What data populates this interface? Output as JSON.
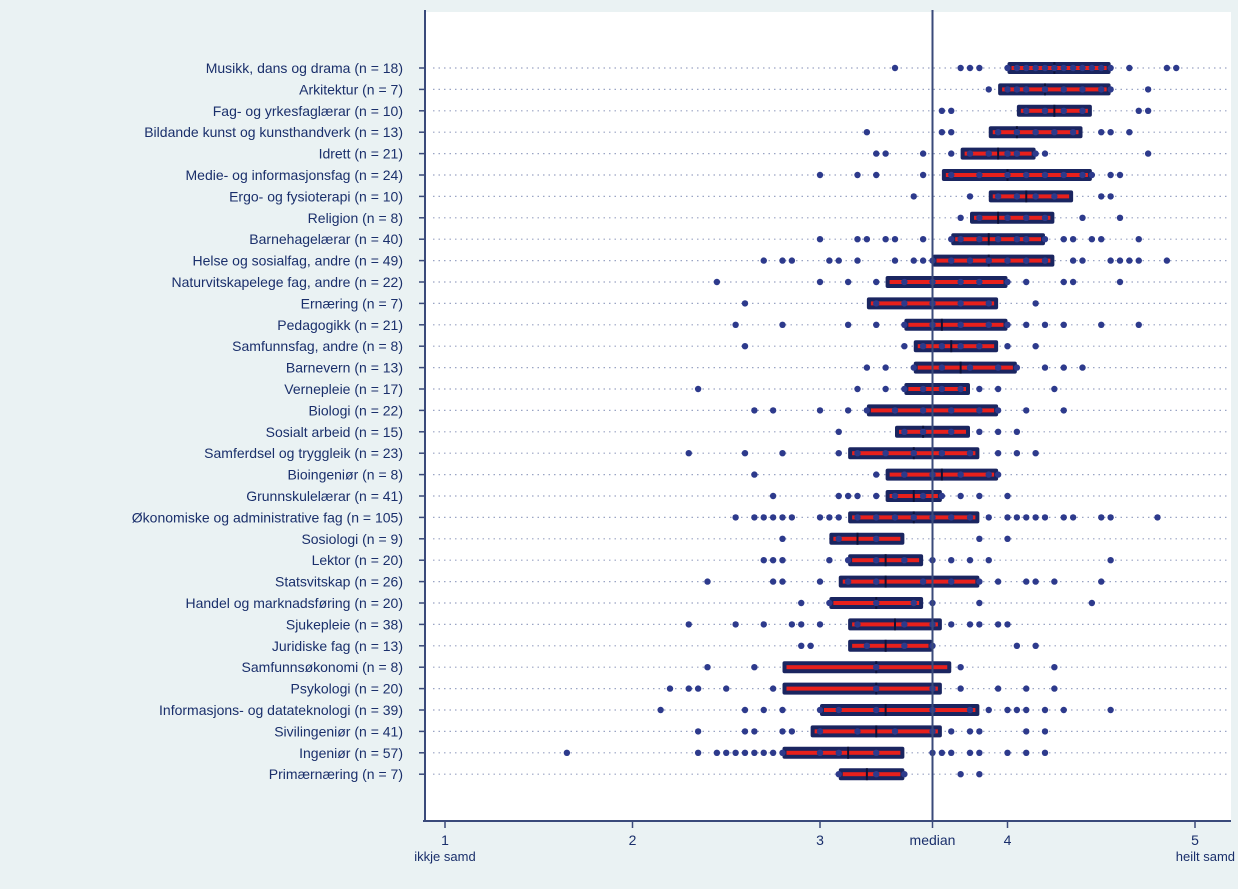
{
  "chart_data": {
    "type": "boxplot",
    "title": "",
    "xlim": [
      0.9,
      5.25
    ],
    "xticks": [
      "1",
      "2",
      "3",
      "4",
      "5"
    ],
    "x_tick_values": [
      1,
      2,
      3,
      4,
      5
    ],
    "x_end_labels": {
      "low": "ikkje samd",
      "high": "heilt samd"
    },
    "median_line": {
      "value": 3.6,
      "label": "median"
    },
    "grid": "dotted horizontal per category",
    "colors": {
      "box": "#1a2560",
      "median_band": "#e8201c",
      "points": "#2d3a8c",
      "axis": "#3a4a7a",
      "plot_bg": "#ffffff",
      "page_bg": "#eaf2f3",
      "text": "#1a2f6b"
    },
    "categories": [
      "Musikk, dans og drama (n = 18)",
      "Arkitektur (n = 7)",
      "Fag- og yrkesfaglærar (n = 10)",
      "Bildande kunst og kunsthandverk (n = 13)",
      "Idrett (n = 21)",
      "Medie- og informasjonsfag (n = 24)",
      "Ergo- og fysioterapi (n = 10)",
      "Religion (n = 8)",
      "Barnehagelærar (n = 40)",
      "Helse og sosialfag, andre (n = 49)",
      "Naturvitskapelege fag, andre (n = 22)",
      "Ernæring (n = 7)",
      "Pedagogikk (n = 21)",
      "Samfunnsfag, andre (n = 8)",
      "Barnevern (n = 13)",
      "Vernepleie (n = 17)",
      "Biologi (n = 22)",
      "Sosialt arbeid (n = 15)",
      "Samferdsel og tryggleik (n = 23)",
      "Bioingeniør (n = 8)",
      "Grunnskulelærar (n = 41)",
      "Økonomiske og administrative fag (n = 105)",
      "Sosiologi (n = 9)",
      "Lektor (n = 20)",
      "Statsvitskap (n = 26)",
      "Handel og marknadsføring (n = 20)",
      "Sjukepleie (n = 38)",
      "Juridiske fag (n = 13)",
      "Samfunnsøkonomi (n = 8)",
      "Psykologi (n = 20)",
      "Informasjons- og datateknologi (n = 39)",
      "Sivilingeniør (n = 41)",
      "Ingeniør (n = 57)",
      "Primærnæring (n = 7)"
    ],
    "boxes": [
      {
        "q1": 4.0,
        "median": 4.25,
        "q3": 4.55
      },
      {
        "q1": 3.95,
        "median": 4.2,
        "q3": 4.55
      },
      {
        "q1": 4.05,
        "median": 4.25,
        "q3": 4.45
      },
      {
        "q1": 3.9,
        "median": 4.05,
        "q3": 4.4
      },
      {
        "q1": 3.75,
        "median": 3.95,
        "q3": 4.15
      },
      {
        "q1": 3.65,
        "median": 4.0,
        "q3": 4.45
      },
      {
        "q1": 3.9,
        "median": 4.1,
        "q3": 4.35
      },
      {
        "q1": 3.8,
        "median": 3.95,
        "q3": 4.25
      },
      {
        "q1": 3.7,
        "median": 3.9,
        "q3": 4.2
      },
      {
        "q1": 3.6,
        "median": 3.9,
        "q3": 4.25
      },
      {
        "q1": 3.35,
        "median": 3.6,
        "q3": 4.0
      },
      {
        "q1": 3.25,
        "median": 3.6,
        "q3": 3.95
      },
      {
        "q1": 3.45,
        "median": 3.65,
        "q3": 4.0
      },
      {
        "q1": 3.5,
        "median": 3.7,
        "q3": 3.95
      },
      {
        "q1": 3.5,
        "median": 3.75,
        "q3": 4.05
      },
      {
        "q1": 3.45,
        "median": 3.6,
        "q3": 3.8
      },
      {
        "q1": 3.25,
        "median": 3.6,
        "q3": 3.95
      },
      {
        "q1": 3.4,
        "median": 3.55,
        "q3": 3.8
      },
      {
        "q1": 3.15,
        "median": 3.5,
        "q3": 3.85
      },
      {
        "q1": 3.35,
        "median": 3.65,
        "q3": 3.95
      },
      {
        "q1": 3.35,
        "median": 3.5,
        "q3": 3.65
      },
      {
        "q1": 3.15,
        "median": 3.5,
        "q3": 3.85
      },
      {
        "q1": 3.05,
        "median": 3.2,
        "q3": 3.45
      },
      {
        "q1": 3.15,
        "median": 3.35,
        "q3": 3.55
      },
      {
        "q1": 3.1,
        "median": 3.35,
        "q3": 3.85
      },
      {
        "q1": 3.05,
        "median": 3.3,
        "q3": 3.55
      },
      {
        "q1": 3.15,
        "median": 3.4,
        "q3": 3.65
      },
      {
        "q1": 3.15,
        "median": 3.35,
        "q3": 3.6
      },
      {
        "q1": 2.8,
        "median": 3.3,
        "q3": 3.7
      },
      {
        "q1": 2.8,
        "median": 3.3,
        "q3": 3.65
      },
      {
        "q1": 3.0,
        "median": 3.35,
        "q3": 3.85
      },
      {
        "q1": 2.95,
        "median": 3.3,
        "q3": 3.65
      },
      {
        "q1": 2.8,
        "median": 3.15,
        "q3": 3.45
      },
      {
        "q1": 3.1,
        "median": 3.25,
        "q3": 3.45
      }
    ],
    "points": [
      [
        3.4,
        3.75,
        3.8,
        3.85,
        4.0,
        4.05,
        4.1,
        4.15,
        4.2,
        4.25,
        4.3,
        4.35,
        4.4,
        4.45,
        4.5,
        4.55,
        4.65,
        4.85,
        4.9
      ],
      [
        3.9,
        4.0,
        4.05,
        4.1,
        4.2,
        4.3,
        4.4,
        4.5,
        4.55,
        4.75
      ],
      [
        3.65,
        3.7,
        4.1,
        4.2,
        4.3,
        4.4,
        4.7,
        4.75
      ],
      [
        3.25,
        3.65,
        3.7,
        3.95,
        4.05,
        4.15,
        4.25,
        4.35,
        4.5,
        4.55,
        4.65
      ],
      [
        3.3,
        3.35,
        3.55,
        3.7,
        3.8,
        3.9,
        4.0,
        4.05,
        4.15,
        4.2,
        4.75
      ],
      [
        3.0,
        3.2,
        3.3,
        3.55,
        3.7,
        3.85,
        4.0,
        4.1,
        4.2,
        4.3,
        4.4,
        4.45,
        4.55,
        4.6
      ],
      [
        3.5,
        3.8,
        3.95,
        4.05,
        4.15,
        4.25,
        4.5,
        4.55
      ],
      [
        3.75,
        3.85,
        4.0,
        4.1,
        4.2,
        4.4,
        4.6
      ],
      [
        3.0,
        3.2,
        3.25,
        3.35,
        3.4,
        3.55,
        3.7,
        3.75,
        3.85,
        3.95,
        4.05,
        4.1,
        4.2,
        4.3,
        4.35,
        4.45,
        4.5,
        4.7
      ],
      [
        2.7,
        2.8,
        2.85,
        3.05,
        3.1,
        3.2,
        3.4,
        3.5,
        3.55,
        3.6,
        3.7,
        3.8,
        3.9,
        4.0,
        4.1,
        4.2,
        4.35,
        4.4,
        4.55,
        4.6,
        4.65,
        4.7,
        4.85
      ],
      [
        2.45,
        3.0,
        3.15,
        3.3,
        3.45,
        3.6,
        3.75,
        3.85,
        4.0,
        4.1,
        4.3,
        4.35,
        4.6
      ],
      [
        2.6,
        3.3,
        3.45,
        3.6,
        3.75,
        3.9,
        4.15
      ],
      [
        2.55,
        2.8,
        3.15,
        3.3,
        3.45,
        3.6,
        3.75,
        3.9,
        4.0,
        4.1,
        4.2,
        4.3,
        4.5,
        4.7
      ],
      [
        2.6,
        3.45,
        3.55,
        3.65,
        3.75,
        3.85,
        4.0,
        4.15
      ],
      [
        3.25,
        3.35,
        3.5,
        3.65,
        3.8,
        3.95,
        4.05,
        4.2,
        4.3,
        4.4
      ],
      [
        2.35,
        3.2,
        3.35,
        3.45,
        3.55,
        3.65,
        3.75,
        3.85,
        3.95,
        4.25
      ],
      [
        2.65,
        2.75,
        3.0,
        3.15,
        3.25,
        3.4,
        3.55,
        3.7,
        3.85,
        3.95,
        4.1,
        4.3
      ],
      [
        3.1,
        3.45,
        3.55,
        3.7,
        3.85,
        3.95,
        4.05
      ],
      [
        2.3,
        2.6,
        2.8,
        3.1,
        3.2,
        3.35,
        3.5,
        3.65,
        3.8,
        3.95,
        4.05,
        4.15
      ],
      [
        2.65,
        3.3,
        3.45,
        3.6,
        3.75,
        3.9,
        3.95
      ],
      [
        2.75,
        3.1,
        3.15,
        3.2,
        3.3,
        3.4,
        3.55,
        3.65,
        3.75,
        3.85,
        4.0
      ],
      [
        2.55,
        2.65,
        2.7,
        2.75,
        2.8,
        2.85,
        3.0,
        3.05,
        3.1,
        3.2,
        3.3,
        3.4,
        3.5,
        3.6,
        3.7,
        3.8,
        3.9,
        4.0,
        4.05,
        4.1,
        4.15,
        4.2,
        4.3,
        4.35,
        4.5,
        4.55,
        4.8
      ],
      [
        2.8,
        3.1,
        3.3,
        3.85,
        4.0
      ],
      [
        2.7,
        2.75,
        2.8,
        3.05,
        3.15,
        3.3,
        3.45,
        3.6,
        3.7,
        3.8,
        3.9,
        4.55
      ],
      [
        2.4,
        2.75,
        2.8,
        3.0,
        3.15,
        3.3,
        3.55,
        3.7,
        3.85,
        3.95,
        4.1,
        4.15,
        4.25,
        4.5
      ],
      [
        2.9,
        3.05,
        3.3,
        3.5,
        3.6,
        3.85,
        4.45
      ],
      [
        2.3,
        2.55,
        2.7,
        2.85,
        2.9,
        3.0,
        3.2,
        3.45,
        3.6,
        3.7,
        3.8,
        3.85,
        3.95,
        4.0
      ],
      [
        2.9,
        2.95,
        3.25,
        3.45,
        3.6,
        4.05,
        4.15
      ],
      [
        2.4,
        2.65,
        3.3,
        3.75,
        4.25
      ],
      [
        2.2,
        2.3,
        2.35,
        2.5,
        2.75,
        3.3,
        3.6,
        3.75,
        3.95,
        4.1,
        4.25
      ],
      [
        2.15,
        2.6,
        2.7,
        2.8,
        3.0,
        3.1,
        3.3,
        3.6,
        3.8,
        3.9,
        4.0,
        4.05,
        4.1,
        4.2,
        4.3,
        4.55
      ],
      [
        2.35,
        2.6,
        2.65,
        2.8,
        2.85,
        3.0,
        3.2,
        3.4,
        3.6,
        3.7,
        3.8,
        3.85,
        4.1,
        4.2
      ],
      [
        1.65,
        2.35,
        2.45,
        2.5,
        2.55,
        2.6,
        2.65,
        2.7,
        2.75,
        2.8,
        3.0,
        3.1,
        3.3,
        3.6,
        3.65,
        3.7,
        3.8,
        3.85,
        4.0,
        4.1,
        4.2
      ],
      [
        3.1,
        3.3,
        3.45,
        3.75,
        3.85
      ]
    ]
  }
}
